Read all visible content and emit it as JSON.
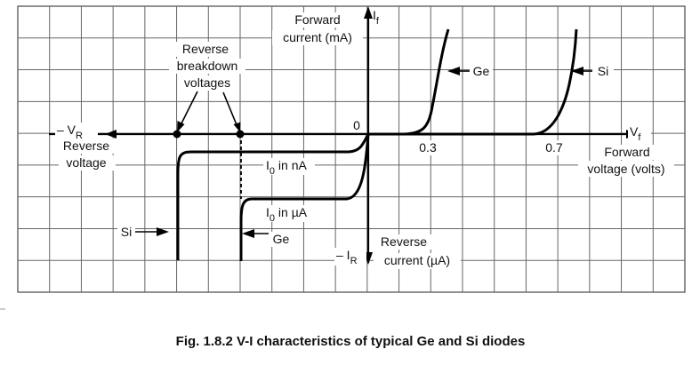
{
  "figure": {
    "caption": "Fig. 1.8.2 V-I characteristics of typical Ge and Si diodes",
    "labels": {
      "forward_current_1": "Forward",
      "forward_current_2": "current (mA)",
      "if_axis": "I",
      "if_sub": "f",
      "reverse_breakdown_1": "Reverse",
      "reverse_breakdown_2": "breakdown",
      "reverse_breakdown_3": "voltages",
      "vr_axis": "– V",
      "vr_sub": "R",
      "reverse_voltage_1": "Reverse",
      "reverse_voltage_2": "voltage",
      "origin": "0",
      "tick_03": "0.3",
      "tick_07": "0.7",
      "vf_axis": "V",
      "vf_sub": "f",
      "forward_voltage_1": "Forward",
      "forward_voltage_2": "voltage (volts)",
      "ge_forward": "Ge",
      "si_forward": "Si",
      "io_na": "I",
      "io_na_sub": "0",
      "io_na_rest": " in nA",
      "io_ua": "I",
      "io_ua_sub": "0",
      "io_ua_rest": " in µA",
      "si_reverse": "Si",
      "ge_reverse": "Ge",
      "ir_axis": "– I",
      "ir_sub": "R",
      "reverse_current_1": "Reverse",
      "reverse_current_2": "current (µA)"
    }
  }
}
